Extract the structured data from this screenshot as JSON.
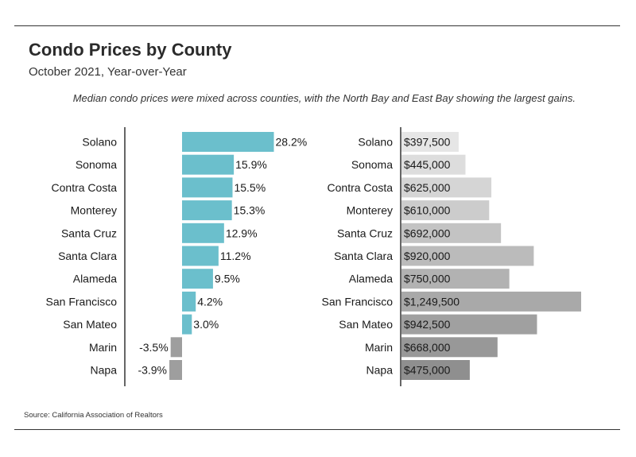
{
  "header": {
    "title": "Condo Prices by County",
    "subtitle": "October 2021, Year-over-Year",
    "note": "Median condo prices were mixed across counties, with the North Bay and East Bay showing the largest gains."
  },
  "footer": {
    "source": "Source:  California Association of Realtors"
  },
  "colors": {
    "positive": "#6bbfcc",
    "negative": "#9e9e9e",
    "price_light": "#e6e6e6",
    "price_dark": "#8f8f8f",
    "axis": "#333333"
  },
  "chart_data": [
    {
      "type": "bar",
      "orientation": "horizontal",
      "categories": [
        "Solano",
        "Sonoma",
        "Contra Costa",
        "Monterey",
        "Santa Cruz",
        "Santa Clara",
        "Alameda",
        "San Francisco",
        "San Mateo",
        "Marin",
        "Napa"
      ],
      "values": [
        28.2,
        15.9,
        15.5,
        15.3,
        12.9,
        11.2,
        9.5,
        4.2,
        3.0,
        -3.5,
        -3.9
      ],
      "labels": [
        "28.2%",
        "15.9%",
        "15.5%",
        "15.3%",
        "12.9%",
        "11.2%",
        "9.5%",
        "4.2%",
        "3.0%",
        "-3.5%",
        "-3.9%"
      ],
      "xlim": [
        -10,
        30
      ],
      "grid": false
    },
    {
      "type": "bar",
      "orientation": "horizontal",
      "categories": [
        "Solano",
        "Sonoma",
        "Contra Costa",
        "Monterey",
        "Santa Cruz",
        "Santa Clara",
        "Alameda",
        "San Francisco",
        "San Mateo",
        "Marin",
        "Napa"
      ],
      "values": [
        397500,
        445000,
        625000,
        610000,
        692000,
        920000,
        750000,
        1249500,
        942500,
        668000,
        475000
      ],
      "labels": [
        "$397,500",
        "$445,000",
        "$625,000",
        "$610,000",
        "$692,000",
        "$920,000",
        "$750,000",
        "$1,249,500",
        "$942,500",
        "$668,000",
        "$475,000"
      ],
      "xlim": [
        0,
        1250000
      ],
      "grid": false
    }
  ]
}
